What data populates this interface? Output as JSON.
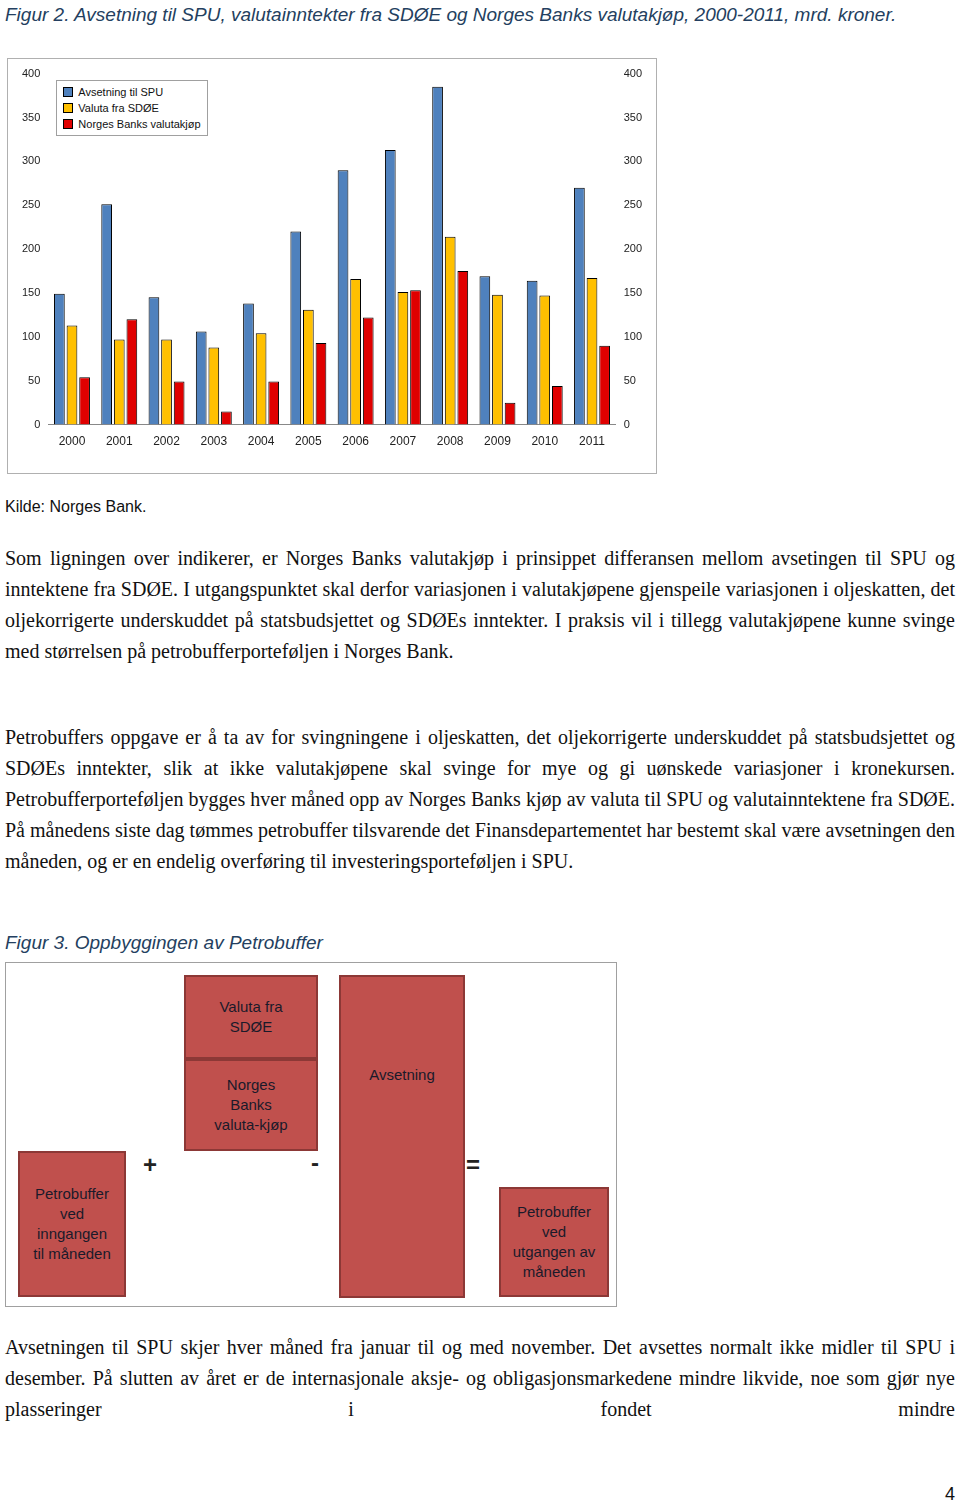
{
  "figure2_caption": "Figur 2. Avsetning til SPU, valutainntekter fra SDØE og Norges Banks valutakjøp, 2000-2011, mrd. kroner.",
  "chart_data": {
    "type": "bar",
    "categories": [
      "2000",
      "2001",
      "2002",
      "2003",
      "2004",
      "2005",
      "2006",
      "2007",
      "2008",
      "2009",
      "2010",
      "2011"
    ],
    "series": [
      {
        "name": "Avsetning til SPU",
        "color": "#4f81bd",
        "values": [
          149,
          251,
          145,
          106,
          138,
          220,
          290,
          313,
          385,
          169,
          164,
          270
        ]
      },
      {
        "name": "Valuta fra SDØE",
        "color": "#ffc000",
        "values": [
          113,
          97,
          97,
          88,
          104,
          131,
          166,
          151,
          214,
          148,
          147,
          167
        ]
      },
      {
        "name": "Norges Banks valutakjøp",
        "color": "#e00000",
        "values": [
          54,
          120,
          49,
          15,
          49,
          93,
          122,
          153,
          175,
          25,
          44,
          90
        ]
      }
    ],
    "ylim": [
      0,
      400
    ],
    "yticks": [
      0,
      50,
      100,
      150,
      200,
      250,
      300,
      350,
      400
    ],
    "y2lim": [
      0,
      400
    ],
    "y2ticks": [
      0,
      50,
      100,
      150,
      200,
      250,
      300,
      350,
      400
    ],
    "grid": false,
    "legend": "upper left"
  },
  "source": "Kilde: Norges Bank.",
  "paragraphs_before": [
    "Som ligningen over indikerer, er Norges Banks valutakjøp i prinsippet differansen mellom avsetingen til SPU og inntektene fra SDØE. I utgangspunktet skal derfor variasjonen i valutakjøpene gjenspeile variasjonen i oljeskatten, det oljekorrigerte underskuddet på statsbudsjettet og SDØEs inntekter. I praksis vil i tillegg valutakjøpene kunne svinge med størrelsen på petrobufferporteføljen i Norges Bank.",
    "Petrobuffers oppgave er å ta av for svingningene i oljeskatten, det oljekorrigerte underskuddet på statsbudsjettet og SDØEs inntekter, slik at ikke valutakjøpene skal svinge for mye og gi uønskede variasjoner i kronekursen. Petrobufferporteføljen bygges hver måned opp av Norges Banks kjøp av valuta til SPU og valutainntektene fra SDØE. På månedens siste dag tømmes petrobuffer tilsvarende det Finansdepartementet har bestemt skal være avsetningen den måneden, og er en endelig overføring til investeringsporteføljen i SPU."
  ],
  "figure3": {
    "caption": "Figur 3. Oppbyggingen av Petrobuffer",
    "boxes": {
      "valuta_sdoe": [
        "Valuta fra",
        "SDØE"
      ],
      "valutakjop": [
        "Norges",
        "Banks",
        "valuta-kjøp"
      ],
      "inngang": [
        "Petrobuffer",
        "ved",
        "inngangen",
        "til måneden"
      ],
      "avsetning": [
        "Avsetning"
      ],
      "utgang": [
        "Petrobuffer",
        "ved",
        "utgangen av",
        "måneden"
      ]
    },
    "operators": {
      "plus": "+",
      "minus": "-",
      "equals": "="
    }
  },
  "paragraphs_after": [
    "Avsetningen til SPU skjer hver måned fra januar til og med november. Det avsettes normalt ikke midler til SPU i desember. På slutten av året er de internasjonale aksje- og obligasjonsmarkedene mindre likvide, noe som gjør nye plasseringer i fondet mindre"
  ],
  "page_number": "4"
}
